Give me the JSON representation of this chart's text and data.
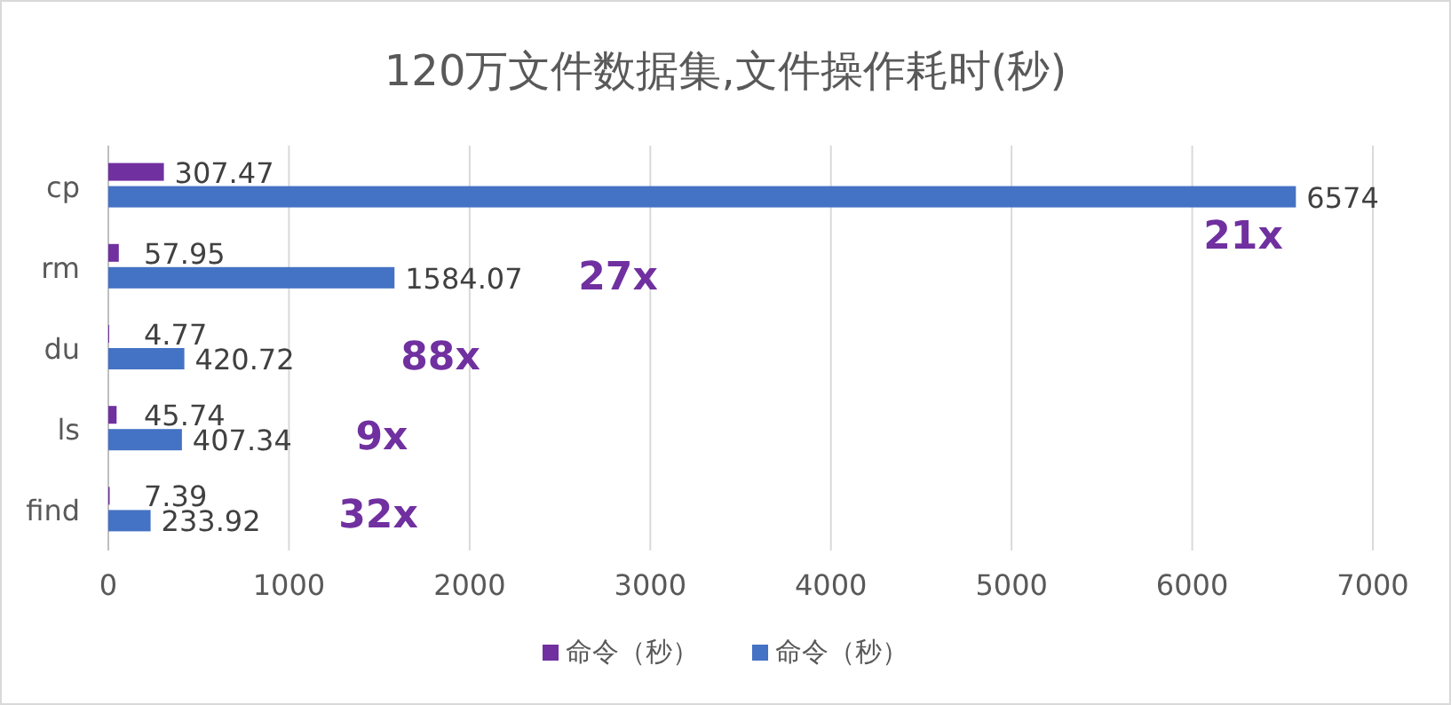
{
  "chart_data": {
    "type": "bar",
    "orientation": "horizontal",
    "title": "120万文件数据集,文件操作耗时(秒)",
    "categories": [
      "cp",
      "rm",
      "du",
      "ls",
      "find"
    ],
    "series": [
      {
        "name": "命令（秒）",
        "color": "#7030a0",
        "values": [
          307.47,
          57.95,
          4.77,
          45.74,
          7.39
        ]
      },
      {
        "name": "命令（秒）",
        "color": "#4472c4",
        "values": [
          6574,
          1584.07,
          420.72,
          407.34,
          233.92
        ]
      }
    ],
    "xlim": [
      0,
      7000
    ],
    "xticks": [
      0,
      1000,
      2000,
      3000,
      4000,
      5000,
      6000,
      7000
    ],
    "grid": "x",
    "legend": "bottom",
    "data_labels": true,
    "annotations": [
      "21x",
      "27x",
      "88x",
      "9x",
      "32x"
    ]
  }
}
